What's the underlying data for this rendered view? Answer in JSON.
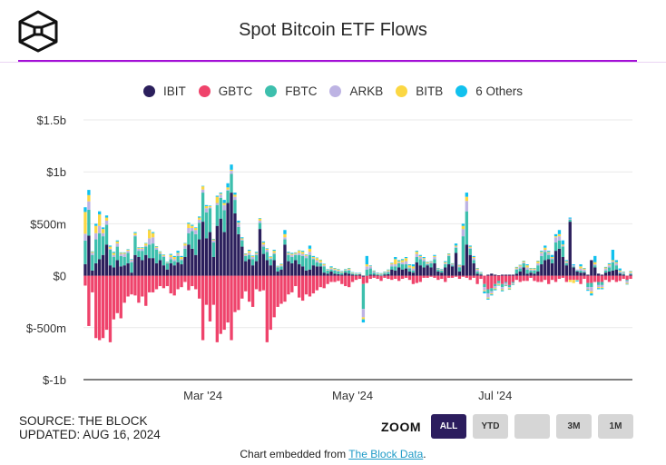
{
  "header": {
    "title": "Spot Bitcoin ETF Flows",
    "logo": "the-block-cube-logo"
  },
  "legend": [
    {
      "label": "IBIT",
      "color": "#2b1f5c"
    },
    {
      "label": "GBTC",
      "color": "#ef436b"
    },
    {
      "label": "FBTC",
      "color": "#3dbfad"
    },
    {
      "label": "ARKB",
      "color": "#bdb3e3"
    },
    {
      "label": "BITB",
      "color": "#fbd743"
    },
    {
      "label": "6 Others",
      "color": "#11c1ee"
    }
  ],
  "footer": {
    "source": "SOURCE: THE BLOCK",
    "updated": "UPDATED: AUG 16, 2024",
    "zoom_label": "ZOOM",
    "zoom_buttons": [
      "ALL",
      "YTD",
      "",
      "3M",
      "1M"
    ],
    "zoom_active": "ALL",
    "embed_prefix": "Chart embedded from ",
    "embed_link": "The Block Data",
    "embed_suffix": "."
  },
  "chart_data": {
    "type": "bar",
    "stacked": true,
    "title": "Spot Bitcoin ETF Flows",
    "xlabel": "",
    "ylabel": "",
    "ylim": [
      -1000,
      1500
    ],
    "units": "USD millions",
    "y_ticks": [
      {
        "value": 1500,
        "label": "$1.5b"
      },
      {
        "value": 1000,
        "label": "$1b"
      },
      {
        "value": 500,
        "label": "$500m"
      },
      {
        "value": 0,
        "label": "$0"
      },
      {
        "value": -500,
        "label": "$-500m"
      },
      {
        "value": -1000,
        "label": "$-1b"
      }
    ],
    "x_ticks": [
      {
        "index": 33,
        "label": "Mar '24"
      },
      {
        "index": 75,
        "label": "May '24"
      },
      {
        "index": 115,
        "label": "Jul '24"
      }
    ],
    "grid": true,
    "legend_position": "top-center",
    "series_names": [
      "IBIT",
      "GBTC",
      "FBTC",
      "ARKB",
      "BITB",
      "6 Others"
    ],
    "bars": [
      [
        112,
        -95,
        227,
        65,
        210,
        45
      ],
      [
        386,
        -484,
        250,
        80,
        60,
        50
      ],
      [
        50,
        -160,
        150,
        20,
        10,
        5
      ],
      [
        120,
        -600,
        230,
        60,
        70,
        20
      ],
      [
        160,
        -620,
        250,
        70,
        110,
        30
      ],
      [
        200,
        -600,
        180,
        30,
        40,
        15
      ],
      [
        300,
        -520,
        190,
        40,
        30,
        20
      ],
      [
        100,
        -640,
        150,
        10,
        20,
        10
      ],
      [
        80,
        -420,
        100,
        20,
        20,
        10
      ],
      [
        150,
        -360,
        130,
        30,
        20,
        10
      ],
      [
        90,
        -410,
        100,
        20,
        10,
        5
      ],
      [
        100,
        -260,
        80,
        30,
        10,
        5
      ],
      [
        120,
        -200,
        100,
        20,
        10,
        5
      ],
      [
        30,
        -180,
        100,
        20,
        5,
        5
      ],
      [
        200,
        -190,
        180,
        10,
        20,
        10
      ],
      [
        180,
        -260,
        60,
        20,
        10,
        5
      ],
      [
        150,
        -200,
        90,
        20,
        10,
        5
      ],
      [
        200,
        -290,
        80,
        10,
        20,
        5
      ],
      [
        170,
        -160,
        130,
        60,
        80,
        5
      ],
      [
        170,
        -160,
        140,
        60,
        40,
        10
      ],
      [
        120,
        -130,
        130,
        20,
        10,
        5
      ],
      [
        150,
        -100,
        60,
        10,
        10,
        5
      ],
      [
        100,
        -120,
        80,
        10,
        10,
        5
      ],
      [
        60,
        -100,
        60,
        5,
        5,
        5
      ],
      [
        120,
        -170,
        40,
        20,
        20,
        10
      ],
      [
        100,
        -190,
        40,
        20,
        20,
        10
      ],
      [
        130,
        -130,
        60,
        20,
        10,
        20
      ],
      [
        110,
        -110,
        40,
        10,
        20,
        10
      ],
      [
        180,
        -60,
        80,
        30,
        20,
        5
      ],
      [
        300,
        -140,
        110,
        50,
        40,
        10
      ],
      [
        260,
        -100,
        170,
        30,
        20,
        10
      ],
      [
        200,
        -130,
        200,
        40,
        20,
        5
      ],
      [
        350,
        -220,
        160,
        30,
        20,
        10
      ],
      [
        520,
        -620,
        280,
        30,
        30,
        5
      ],
      [
        360,
        -280,
        250,
        40,
        20,
        10
      ],
      [
        420,
        -440,
        230,
        10,
        10,
        5
      ],
      [
        180,
        -280,
        140,
        20,
        10,
        5
      ],
      [
        480,
        -640,
        200,
        20,
        60,
        10
      ],
      [
        550,
        -560,
        200,
        30,
        10,
        10
      ],
      [
        420,
        -520,
        210,
        50,
        20,
        30
      ],
      [
        700,
        -450,
        120,
        10,
        20,
        40
      ],
      [
        800,
        -620,
        180,
        30,
        10,
        50
      ],
      [
        600,
        -350,
        130,
        30,
        20,
        20
      ],
      [
        400,
        -330,
        70,
        30,
        10,
        20
      ],
      [
        280,
        -220,
        60,
        10,
        10,
        10
      ],
      [
        140,
        -150,
        50,
        10,
        10,
        5
      ],
      [
        160,
        -250,
        40,
        20,
        20,
        10
      ],
      [
        100,
        -300,
        60,
        20,
        10,
        5
      ],
      [
        140,
        -130,
        60,
        10,
        10,
        10
      ],
      [
        450,
        -150,
        60,
        20,
        20,
        5
      ],
      [
        210,
        -140,
        70,
        20,
        20,
        10
      ],
      [
        150,
        -640,
        80,
        20,
        10,
        5
      ],
      [
        100,
        -520,
        60,
        10,
        10,
        5
      ],
      [
        150,
        -400,
        60,
        10,
        20,
        10
      ],
      [
        40,
        -300,
        40,
        5,
        5,
        5
      ],
      [
        60,
        -270,
        30,
        10,
        10,
        5
      ],
      [
        300,
        -250,
        50,
        20,
        30,
        40
      ],
      [
        140,
        -180,
        60,
        10,
        10,
        10
      ],
      [
        120,
        -160,
        60,
        20,
        10,
        10
      ],
      [
        150,
        -100,
        50,
        10,
        10,
        5
      ],
      [
        110,
        -210,
        90,
        20,
        20,
        5
      ],
      [
        90,
        -240,
        100,
        20,
        20,
        10
      ],
      [
        50,
        -180,
        120,
        20,
        10,
        5
      ],
      [
        60,
        -200,
        140,
        30,
        30,
        30
      ],
      [
        100,
        -170,
        60,
        10,
        10,
        10
      ],
      [
        90,
        -140,
        40,
        20,
        20,
        5
      ],
      [
        90,
        -110,
        30,
        10,
        20,
        5
      ],
      [
        30,
        -120,
        60,
        10,
        10,
        5
      ],
      [
        20,
        -80,
        30,
        5,
        5,
        5
      ],
      [
        40,
        -60,
        20,
        10,
        10,
        10
      ],
      [
        20,
        -60,
        30,
        10,
        10,
        5
      ],
      [
        15,
        -50,
        25,
        10,
        10,
        5
      ],
      [
        10,
        -80,
        20,
        5,
        5,
        5
      ],
      [
        30,
        -100,
        20,
        5,
        5,
        5
      ],
      [
        20,
        -110,
        30,
        10,
        10,
        5
      ],
      [
        10,
        -60,
        10,
        5,
        5,
        5
      ],
      [
        5,
        -40,
        10,
        5,
        5,
        2
      ],
      [
        10,
        -30,
        5,
        5,
        5,
        2
      ],
      [
        -10,
        -70,
        -240,
        -80,
        -20,
        -30
      ],
      [
        0,
        -70,
        60,
        30,
        20,
        80
      ],
      [
        10,
        -30,
        60,
        20,
        5,
        5
      ],
      [
        10,
        -20,
        20,
        10,
        5,
        5
      ],
      [
        5,
        -30,
        10,
        5,
        5,
        5
      ],
      [
        0,
        -50,
        10,
        5,
        5,
        5
      ],
      [
        10,
        -20,
        15,
        5,
        5,
        5
      ],
      [
        15,
        -30,
        20,
        10,
        10,
        5
      ],
      [
        60,
        -40,
        30,
        20,
        10,
        5
      ],
      [
        50,
        -30,
        40,
        20,
        50,
        20
      ],
      [
        80,
        -50,
        40,
        10,
        10,
        10
      ],
      [
        60,
        -30,
        50,
        20,
        20,
        10
      ],
      [
        70,
        -20,
        40,
        30,
        30,
        10
      ],
      [
        40,
        -40,
        30,
        10,
        20,
        10
      ],
      [
        30,
        -80,
        20,
        20,
        20,
        20
      ],
      [
        130,
        -70,
        50,
        30,
        20,
        10
      ],
      [
        100,
        -60,
        60,
        20,
        10,
        10
      ],
      [
        80,
        -20,
        60,
        20,
        10,
        10
      ],
      [
        100,
        -20,
        10,
        10,
        10,
        5
      ],
      [
        80,
        -10,
        40,
        10,
        5,
        5
      ],
      [
        120,
        -20,
        40,
        20,
        10,
        10
      ],
      [
        40,
        -40,
        20,
        5,
        5,
        5
      ],
      [
        30,
        -30,
        20,
        5,
        5,
        5
      ],
      [
        80,
        -60,
        30,
        10,
        10,
        10
      ],
      [
        110,
        -20,
        80,
        10,
        10,
        5
      ],
      [
        90,
        -20,
        10,
        10,
        5,
        5
      ],
      [
        220,
        -10,
        50,
        10,
        10,
        20
      ],
      [
        40,
        -30,
        40,
        10,
        10,
        5
      ],
      [
        100,
        -10,
        280,
        70,
        30,
        20
      ],
      [
        300,
        -20,
        320,
        100,
        40,
        40
      ],
      [
        200,
        -40,
        60,
        10,
        10,
        10
      ],
      [
        120,
        -20,
        30,
        20,
        10,
        10
      ],
      [
        20,
        -80,
        20,
        20,
        10,
        5
      ],
      [
        10,
        -30,
        10,
        5,
        5,
        5
      ],
      [
        0,
        -80,
        -30,
        -30,
        -10,
        -20
      ],
      [
        10,
        -130,
        -40,
        -40,
        -10,
        -10
      ],
      [
        20,
        -120,
        -30,
        -20,
        -10,
        -10
      ],
      [
        10,
        -80,
        -20,
        -20,
        -10,
        -10
      ],
      [
        5,
        -50,
        -20,
        -10,
        -10,
        -5
      ],
      [
        10,
        -80,
        -30,
        -20,
        -10,
        -10
      ],
      [
        10,
        -60,
        -10,
        -20,
        -5,
        -5
      ],
      [
        10,
        -90,
        -20,
        -10,
        -10,
        -5
      ],
      [
        10,
        -60,
        -10,
        -10,
        -5,
        -5
      ],
      [
        20,
        -40,
        40,
        10,
        10,
        5
      ],
      [
        40,
        -60,
        30,
        20,
        10,
        5
      ],
      [
        80,
        -50,
        40,
        10,
        10,
        5
      ],
      [
        20,
        -50,
        40,
        20,
        20,
        10
      ],
      [
        30,
        -20,
        20,
        10,
        10,
        5
      ],
      [
        20,
        -50,
        30,
        10,
        10,
        5
      ],
      [
        40,
        -60,
        60,
        20,
        20,
        5
      ],
      [
        110,
        -60,
        80,
        30,
        10,
        10
      ],
      [
        150,
        -40,
        80,
        20,
        20,
        20
      ],
      [
        160,
        -80,
        40,
        20,
        10,
        10
      ],
      [
        120,
        -40,
        40,
        10,
        10,
        20
      ],
      [
        240,
        -60,
        80,
        50,
        10,
        20
      ],
      [
        260,
        -30,
        80,
        40,
        20,
        40
      ],
      [
        180,
        -20,
        100,
        10,
        10,
        40
      ],
      [
        100,
        -60,
        20,
        10,
        10,
        10
      ],
      [
        520,
        -40,
        20,
        10,
        -20,
        10
      ],
      [
        80,
        -40,
        10,
        10,
        -30,
        10
      ],
      [
        40,
        -40,
        10,
        10,
        -5,
        -10
      ],
      [
        30,
        -80,
        20,
        20,
        20,
        20
      ],
      [
        30,
        -30,
        10,
        20,
        10,
        5
      ],
      [
        10,
        -70,
        -40,
        -20,
        -5,
        -10
      ],
      [
        150,
        -70,
        -40,
        -40,
        -20,
        -20
      ],
      [
        80,
        -60,
        20,
        10,
        20,
        60
      ],
      [
        20,
        -60,
        -30,
        -20,
        -10,
        -10
      ],
      [
        10,
        -60,
        -30,
        -20,
        -10,
        -10
      ],
      [
        30,
        -40,
        20,
        20,
        10,
        5
      ],
      [
        40,
        -60,
        40,
        20,
        10,
        10
      ],
      [
        50,
        -40,
        80,
        10,
        10,
        100
      ],
      [
        60,
        -60,
        40,
        20,
        10,
        20
      ],
      [
        20,
        -50,
        10,
        10,
        10,
        20
      ],
      [
        10,
        -30,
        10,
        10,
        5,
        5
      ],
      [
        0,
        -40,
        -10,
        -20,
        -10,
        -5
      ],
      [
        10,
        -30,
        10,
        10,
        10,
        5
      ]
    ]
  }
}
